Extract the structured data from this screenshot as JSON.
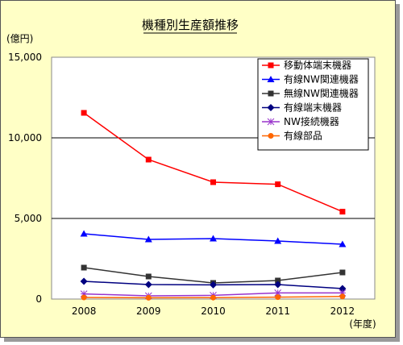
{
  "chart_data": {
    "type": "line",
    "title": "機種別生産額推移",
    "ylabel": "(億円)",
    "xlabel": "(年度)",
    "x": [
      "2008",
      "2009",
      "2010",
      "2011",
      "2012"
    ],
    "ylim": [
      0,
      15000
    ],
    "yticks": [
      "0",
      "5,000",
      "10,000",
      "15,000"
    ],
    "ytick_values": [
      0,
      5000,
      10000,
      15000
    ],
    "grid": "horizontal",
    "legend_position": "top-right",
    "series": [
      {
        "name": "移動体端末機器",
        "color": "#ff0000",
        "marker": "square",
        "values": [
          11550,
          8650,
          7250,
          7120,
          5420
        ]
      },
      {
        "name": "有線NW関連機器",
        "color": "#0000ff",
        "marker": "triangle",
        "values": [
          4050,
          3700,
          3750,
          3600,
          3400
        ]
      },
      {
        "name": "無線NW関連機器",
        "color": "#333333",
        "marker": "square",
        "values": [
          1950,
          1400,
          1000,
          1150,
          1650
        ]
      },
      {
        "name": "有線端末機器",
        "color": "#000080",
        "marker": "diamond",
        "values": [
          1100,
          900,
          880,
          900,
          650
        ]
      },
      {
        "name": "NW接続機器",
        "color": "#9933cc",
        "marker": "star",
        "values": [
          320,
          200,
          230,
          380,
          380
        ]
      },
      {
        "name": "有線部品",
        "color": "#ff6600",
        "marker": "circle",
        "values": [
          100,
          80,
          90,
          120,
          160
        ]
      }
    ]
  }
}
